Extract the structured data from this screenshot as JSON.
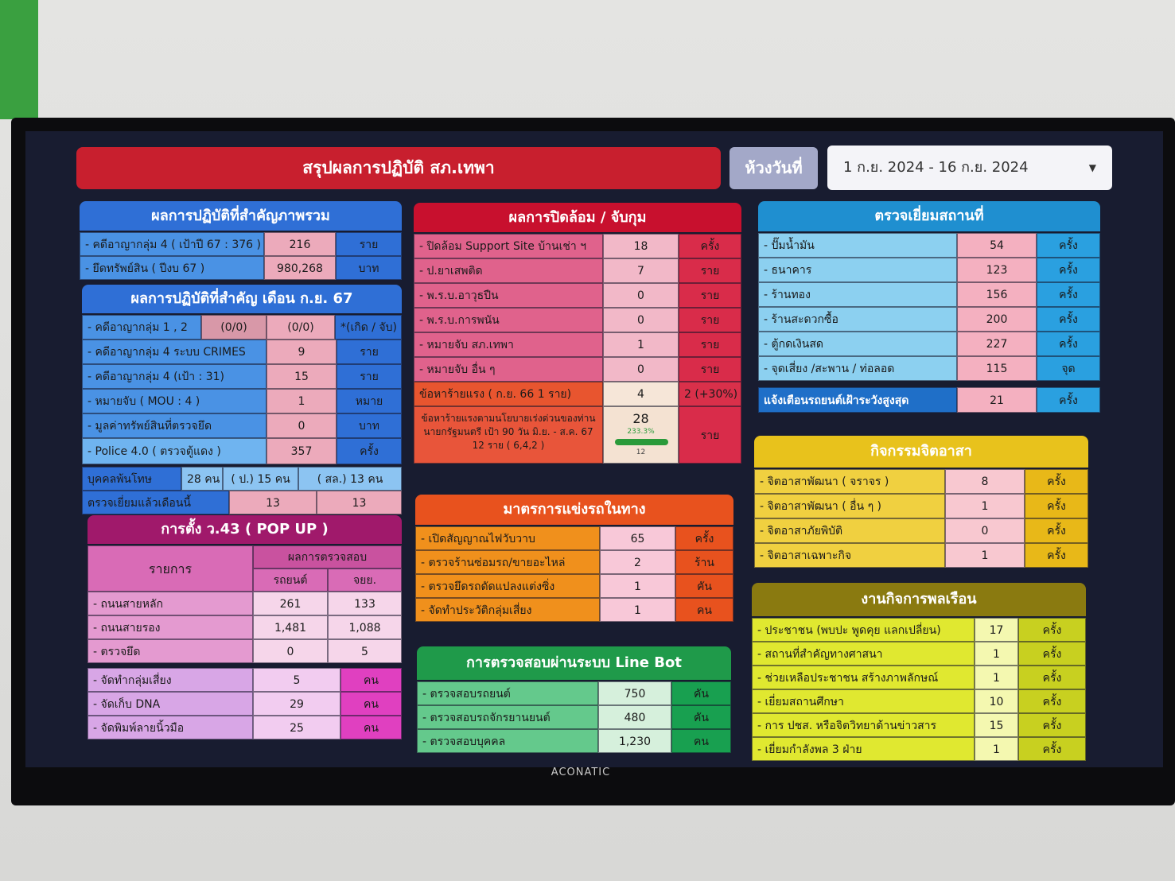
{
  "header": {
    "title": "สรุปผลการปฏิบัติ สภ.เทพา",
    "date_label": "ห้วงวันที่",
    "date_range": "1 ก.ย. 2024 - 16 ก.ย. 2024"
  },
  "tv_brand": "ACONATIC",
  "panels": [
    {
      "title": "ผลการปฏิบัติที่สำคัญภาพรวม",
      "rows": [
        [
          "- คดีอาญากลุ่ม 4 ( เป้าปี 67 : 376 )",
          "216",
          "ราย"
        ],
        [
          "- ยึดทรัพย์สิน ( ปีงบ 67 )",
          "980,268",
          "บาท"
        ]
      ]
    },
    {
      "title": "ผลการปฏิบัติที่สำคัญ เดือน ก.ย. 67",
      "rows": [
        [
          "- คดีอาญากลุ่ม 1 , 2",
          "(0/0)",
          "(0/0)",
          "*(เกิด / จับ)"
        ],
        [
          "- คดีอาญากลุ่ม 4 ระบบ CRIMES",
          "9",
          "ราย"
        ],
        [
          "- คดีอาญากลุ่ม 4 (เป้า : 31)",
          "15",
          "ราย"
        ],
        [
          "- หมายจับ ( MOU : 4 )",
          "1",
          "หมาย"
        ],
        [
          "- มูลค่าทรัพย์สินที่ตรวจยึด",
          "0",
          "บาท"
        ],
        [
          "- Police 4.0 ( ตรวจตู้แดง )",
          "357",
          "ครั้ง"
        ],
        [
          "บุคคลพ้นโทษ",
          "28 คน",
          "( ป.) 15 คน",
          "( สล.) 13 คน"
        ],
        [
          "ตรวจเยี่ยมแล้วเดือนนี้",
          "13",
          "13"
        ]
      ]
    },
    {
      "title": "การตั้ง ว.43 ( POP UP )",
      "header": {
        "item": "รายการ",
        "result": "ผลการตรวจสอบ",
        "car": "รถยนต์",
        "moto": "จยย."
      },
      "rows": [
        [
          "- ถนนสายหลัก",
          "261",
          "133"
        ],
        [
          "- ถนนสายรอง",
          "1,481",
          "1,088"
        ],
        [
          "- ตรวจยึด",
          "0",
          "5"
        ],
        [
          "- จัดทำกลุ่มเสี่ยง",
          "5",
          "คน"
        ],
        [
          "- จัดเก็บ DNA",
          "29",
          "คน"
        ],
        [
          "- จัดพิมพ์ลายนิ้วมือ",
          "25",
          "คน"
        ]
      ]
    },
    {
      "title": "ผลการปิดล้อม / จับกุม",
      "rows": [
        [
          "- ปิดล้อม Support Site บ้านเช่า ฯ",
          "18",
          "ครั้ง"
        ],
        [
          "- ป.ยาเสพติด",
          "7",
          "ราย"
        ],
        [
          "- พ.ร.บ.อาวุธปืน",
          "0",
          "ราย"
        ],
        [
          "- พ.ร.บ.การพนัน",
          "0",
          "ราย"
        ],
        [
          "- หมายจับ สภ.เทพา",
          "1",
          "ราย"
        ],
        [
          "- หมายจับ อื่น ๆ",
          "0",
          "ราย"
        ],
        [
          "ข้อหาร้ายแรง ( ก.ย. 66 1 ราย)",
          "4",
          "2 (+30%)"
        ],
        [
          "ข้อหาร้ายแรงตามนโยบายเร่งด่วนของท่านนายกรัฐมนตรี เป้า 90 วัน มิ.ย. - ส.ค. 67 12 ราย ( 6,4,2 )",
          "28",
          "ราย"
        ]
      ],
      "progress_percent": "233.3%",
      "progress_target": "12"
    },
    {
      "title": "มาตรการแข่งรถในทาง",
      "rows": [
        [
          "- เปิดสัญญาณไฟวับวาบ",
          "65",
          "ครั้ง"
        ],
        [
          "- ตรวจร้านซ่อมรถ/ขายอะไหล่",
          "2",
          "ร้าน"
        ],
        [
          "- ตรวจยึดรถดัดแปลงแต่งซิ่ง",
          "1",
          "คัน"
        ],
        [
          "- จัดทำประวัติกลุ่มเสี่ยง",
          "1",
          "คน"
        ]
      ]
    },
    {
      "title": "การตรวจสอบผ่านระบบ Line Bot",
      "rows": [
        [
          "- ตรวจสอบรถยนต์",
          "750",
          "คัน"
        ],
        [
          "- ตรวจสอบรถจักรยานยนต์",
          "480",
          "คัน"
        ],
        [
          "- ตรวจสอบบุคคล",
          "1,230",
          "คน"
        ]
      ]
    },
    {
      "title": "ตรวจเยี่ยมสถานที่",
      "rows": [
        [
          "- ปั๊มน้ำมัน",
          "54",
          "ครั้ง"
        ],
        [
          "- ธนาคาร",
          "123",
          "ครั้ง"
        ],
        [
          "- ร้านทอง",
          "156",
          "ครั้ง"
        ],
        [
          "- ร้านสะดวกซื้อ",
          "200",
          "ครั้ง"
        ],
        [
          "- ตู้กดเงินสด",
          "227",
          "ครั้ง"
        ],
        [
          "- จุดเสี่ยง /สะพาน / ท่อลอด",
          "115",
          "จุด"
        ],
        [
          "แจ้งเตือนรถยนต์เฝ้าระวังสูงสุด",
          "21",
          "ครั้ง"
        ]
      ]
    },
    {
      "title": "กิจกรรมจิตอาสา",
      "rows": [
        [
          "- จิตอาสาพัฒนา ( จราจร )",
          "8",
          "ครั้ง"
        ],
        [
          "- จิตอาสาพัฒนา ( อื่น ๆ )",
          "1",
          "ครั้ง"
        ],
        [
          "- จิตอาสาภัยพิบัติ",
          "0",
          "ครั้ง"
        ],
        [
          "- จิตอาสาเฉพาะกิจ",
          "1",
          "ครั้ง"
        ]
      ]
    },
    {
      "title": "งานกิจการพลเรือน",
      "rows": [
        [
          "- ประชาชน (พบปะ พูดคุย แลกเปลี่ยน)",
          "17",
          "ครั้ง"
        ],
        [
          "- สถานที่สำคัญทางศาสนา",
          "1",
          "ครั้ง"
        ],
        [
          "- ช่วยเหลือประชาชน สร้างภาพลักษณ์",
          "1",
          "ครั้ง"
        ],
        [
          "- เยี่ยมสถานศึกษา",
          "10",
          "ครั้ง"
        ],
        [
          "- การ ปชส. หรือจิตวิทยาด้านข่าวสาร",
          "15",
          "ครั้ง"
        ],
        [
          "- เยี่ยมกำลังพล 3 ฝ่าย",
          "1",
          "ครั้ง"
        ]
      ]
    }
  ]
}
